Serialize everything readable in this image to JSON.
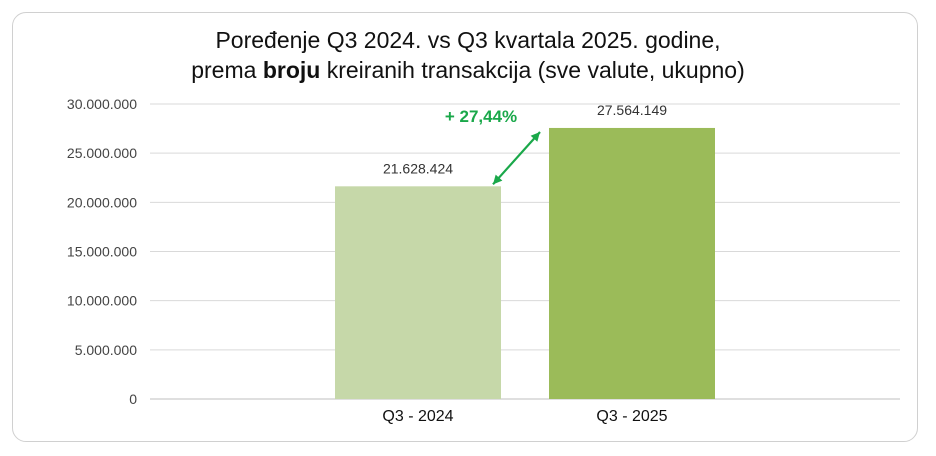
{
  "chart_data": {
    "type": "bar",
    "title_line1": "Poređenje Q3 2024. vs Q3 kvartala 2025. godine,",
    "title_line2_prefix": "prema ",
    "title_line2_bold": "broju",
    "title_line2_suffix": " kreiranih transakcija (sve valute, ukupno)",
    "categories": [
      "Q3 - 2024",
      "Q3 - 2025"
    ],
    "values": [
      21628424,
      27564149
    ],
    "data_labels": [
      "21.628.424",
      "27.564.149"
    ],
    "colors": [
      "#c6d8a9",
      "#9bbb59"
    ],
    "ylim": [
      0,
      30000000
    ],
    "yticks": [
      0,
      5000000,
      10000000,
      15000000,
      20000000,
      25000000,
      30000000
    ],
    "ytick_labels": [
      "0",
      "5.000.000",
      "10.000.000",
      "15.000.000",
      "20.000.000",
      "25.000.000",
      "30.000.000"
    ],
    "annotation": {
      "text": "+ 27,44%",
      "color": "#1aa84a"
    },
    "grid": true,
    "legend": "none"
  }
}
